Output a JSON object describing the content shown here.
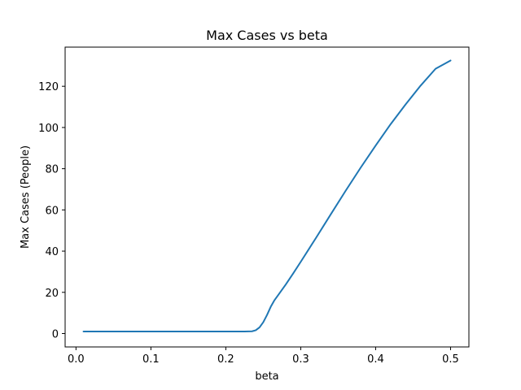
{
  "chart_data": {
    "type": "line",
    "title": "Max Cases vs beta",
    "xlabel": "beta",
    "ylabel": "Max Cases (People)",
    "xlim": [
      -0.0145,
      0.5245
    ],
    "ylim": [
      -6.5,
      139
    ],
    "xticks": [
      {
        "value": 0.0,
        "label": "0.0"
      },
      {
        "value": 0.1,
        "label": "0.1"
      },
      {
        "value": 0.2,
        "label": "0.2"
      },
      {
        "value": 0.3,
        "label": "0.3"
      },
      {
        "value": 0.4,
        "label": "0.4"
      },
      {
        "value": 0.5,
        "label": "0.5"
      }
    ],
    "yticks": [
      {
        "value": 0,
        "label": "0"
      },
      {
        "value": 20,
        "label": "20"
      },
      {
        "value": 40,
        "label": "40"
      },
      {
        "value": 60,
        "label": "60"
      },
      {
        "value": 80,
        "label": "80"
      },
      {
        "value": 100,
        "label": "100"
      },
      {
        "value": 120,
        "label": "120"
      }
    ],
    "grid": false,
    "series": [
      {
        "color": "#1f77b4",
        "x": [
          0.01,
          0.05,
          0.1,
          0.15,
          0.2,
          0.225,
          0.235,
          0.24,
          0.245,
          0.25,
          0.255,
          0.26,
          0.265,
          0.27,
          0.28,
          0.29,
          0.3,
          0.32,
          0.34,
          0.36,
          0.38,
          0.4,
          0.42,
          0.44,
          0.46,
          0.48,
          0.5
        ],
        "y": [
          1,
          1,
          1,
          1,
          1,
          1,
          1.1,
          1.6,
          3,
          5.5,
          9,
          13,
          16.2,
          18.7,
          23.8,
          29.2,
          34.8,
          46.2,
          57.8,
          69.3,
          80.5,
          91.2,
          101.6,
          111.2,
          120.3,
          128.5,
          132.5
        ]
      }
    ]
  }
}
